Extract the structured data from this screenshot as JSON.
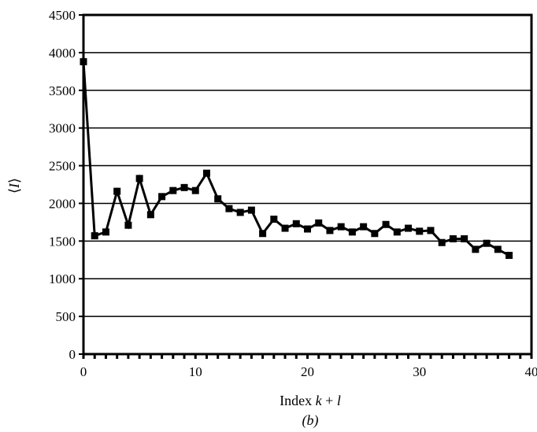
{
  "chart_data": {
    "type": "line",
    "title": "",
    "xlabel_prefix": "Index ",
    "xlabel_k": "k",
    "xlabel_mid": " + ",
    "xlabel_l": "l",
    "ylabel_open": "⟨",
    "ylabel_var": "I",
    "ylabel_close": "⟩",
    "caption": "(b)",
    "xlim": [
      0,
      40
    ],
    "ylim": [
      0,
      4500
    ],
    "xticks": [
      0,
      10,
      20,
      30,
      40
    ],
    "yticks": [
      0,
      500,
      1000,
      1500,
      2000,
      2500,
      3000,
      3500,
      4000,
      4500
    ],
    "grid": "horizontal",
    "marker": "square",
    "color": "#000000",
    "series": [
      {
        "x": [
          0,
          1,
          2,
          3,
          4,
          5,
          6,
          7,
          8,
          9,
          10,
          11,
          12,
          13,
          14,
          15,
          16,
          17,
          18,
          19,
          20,
          21,
          22,
          23,
          24,
          25,
          26,
          27,
          28,
          29,
          30,
          31,
          32,
          33,
          34,
          35,
          36,
          37,
          38
        ],
        "y": [
          3880,
          1570,
          1620,
          2160,
          1710,
          2330,
          1850,
          2090,
          2170,
          2210,
          2170,
          2400,
          2060,
          1930,
          1880,
          1910,
          1600,
          1790,
          1670,
          1730,
          1660,
          1740,
          1640,
          1690,
          1620,
          1690,
          1600,
          1720,
          1620,
          1670,
          1630,
          1640,
          1480,
          1530,
          1530,
          1390,
          1470,
          1390,
          1310
        ]
      }
    ]
  }
}
